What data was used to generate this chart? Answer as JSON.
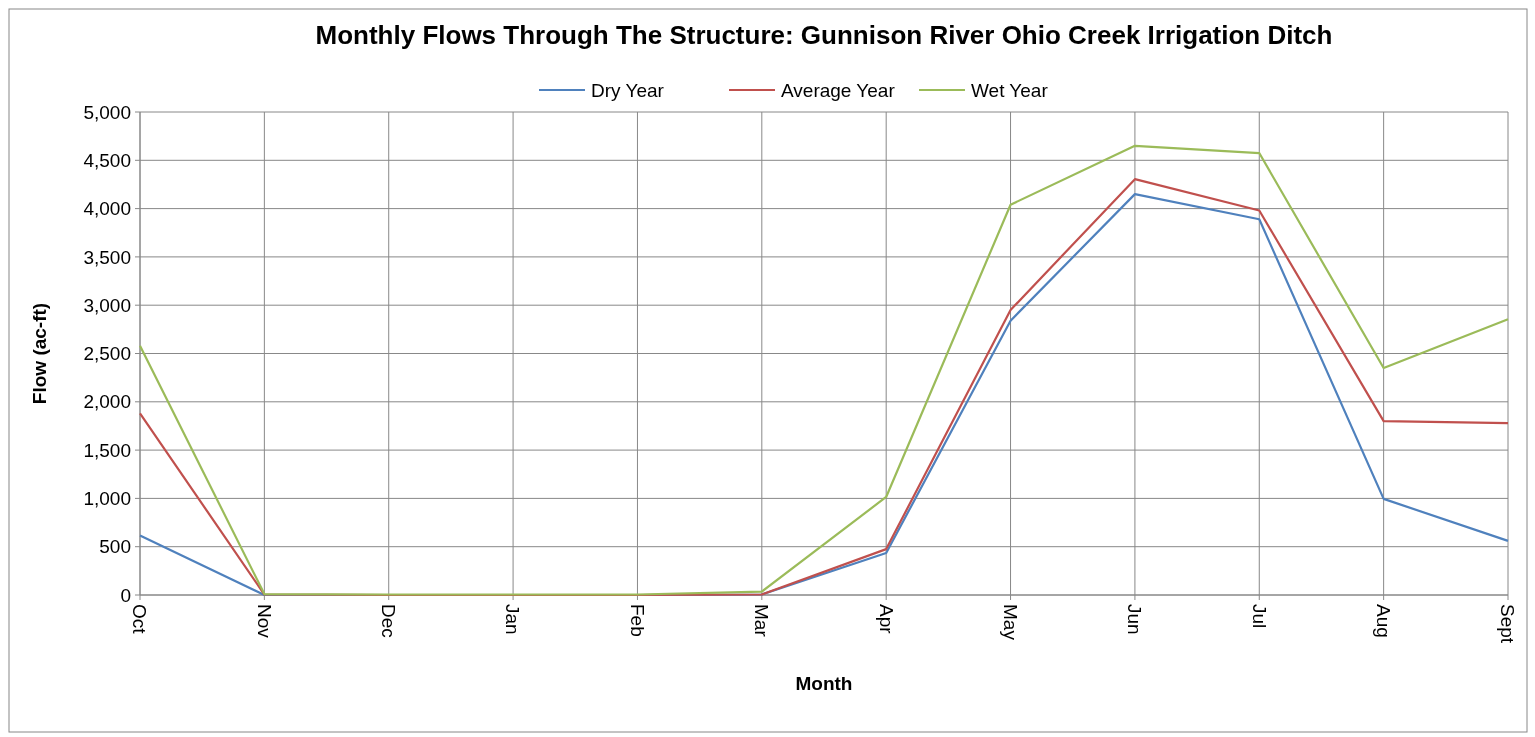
{
  "chart_data": {
    "type": "line",
    "title": "Monthly Flows Through The Structure: Gunnison River Ohio Creek Irrigation Ditch",
    "xlabel": "Month",
    "ylabel": "Flow (ac-ft)",
    "categories": [
      "Oct",
      "Nov",
      "Dec",
      "Jan",
      "Feb",
      "Mar",
      "Apr",
      "May",
      "Jun",
      "Jul",
      "Aug",
      "Sept"
    ],
    "series": [
      {
        "name": "Dry Year",
        "color": "#4f81bd",
        "values": [
          615,
          0,
          0,
          0,
          0,
          5,
          435,
          2840,
          4150,
          3890,
          995,
          560
        ]
      },
      {
        "name": "Average Year",
        "color": "#c0504d",
        "values": [
          1880,
          5,
          0,
          0,
          0,
          5,
          475,
          2950,
          4305,
          3980,
          1800,
          1780
        ]
      },
      {
        "name": "Wet Year",
        "color": "#9bbb59",
        "values": [
          2580,
          10,
          5,
          5,
          5,
          35,
          1015,
          4040,
          4650,
          4575,
          2350,
          2855
        ]
      }
    ],
    "ylim": [
      0,
      5000
    ],
    "yticks": [
      {
        "value": 0,
        "label": "0"
      },
      {
        "value": 500,
        "label": "500"
      },
      {
        "value": 1000,
        "label": "1,000"
      },
      {
        "value": 1500,
        "label": "1,500"
      },
      {
        "value": 2000,
        "label": "2,000"
      },
      {
        "value": 2500,
        "label": "2,500"
      },
      {
        "value": 3000,
        "label": "3,000"
      },
      {
        "value": 3500,
        "label": "3,500"
      },
      {
        "value": 4000,
        "label": "4,000"
      },
      {
        "value": 4500,
        "label": "4,500"
      },
      {
        "value": 5000,
        "label": "5,000"
      }
    ],
    "grid": true,
    "legend": "top",
    "marker": "none",
    "line_style": "solid"
  }
}
